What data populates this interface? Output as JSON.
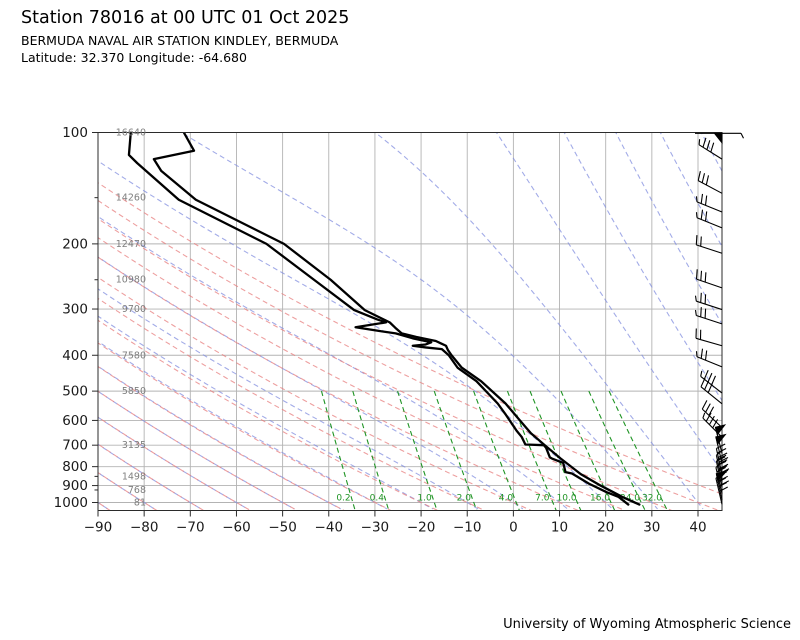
{
  "header": {
    "title": "Station 78016 at 00 UTC 01 Oct 2025",
    "subtitle": "BERMUDA NAVAL AIR STATION KINDLEY, BERMUDA",
    "location": "Latitude: 32.370 Longitude: -64.680"
  },
  "footer": {
    "credit": "University of Wyoming Atmospheric Science"
  },
  "axes": {
    "pressure_unit": "hPa",
    "temperature_unit": "C",
    "pressure_ticks": [
      100,
      200,
      300,
      400,
      500,
      600,
      700,
      800,
      900,
      1000
    ],
    "pressure_minor_ticks": [
      150,
      250,
      850,
      925
    ],
    "temperature_ticks": [
      -90,
      -80,
      -70,
      -60,
      -50,
      -40,
      -30,
      -20,
      -10,
      0,
      10,
      20,
      30,
      40
    ],
    "pressure_range": [
      100,
      1050
    ],
    "temperature_range": [
      -90,
      45
    ],
    "grid": true,
    "height_labels_m": [
      {
        "p": 100,
        "text": "16640"
      },
      {
        "p": 150,
        "text": "14260"
      },
      {
        "p": 200,
        "text": "12470"
      },
      {
        "p": 250,
        "text": "10980"
      },
      {
        "p": 300,
        "text": "9700"
      },
      {
        "p": 400,
        "text": "7580"
      },
      {
        "p": 500,
        "text": "5850"
      },
      {
        "p": 700,
        "text": "3135"
      },
      {
        "p": 850,
        "text": "1498"
      },
      {
        "p": 925,
        "text": "768"
      },
      {
        "p": 1000,
        "text": "81"
      }
    ]
  },
  "background_lines": {
    "dry_adiabats_theta_c": [
      -90,
      -80,
      -70,
      -60,
      -50,
      -40,
      -30,
      -20,
      -10,
      0,
      10,
      20,
      30,
      40,
      50
    ],
    "moist_adiabats_t0_c": [
      -90,
      -80,
      -70,
      -60,
      -50,
      -40,
      -30,
      -20,
      -10,
      0,
      10,
      20,
      30,
      40,
      50,
      60,
      70,
      80,
      90,
      100,
      110,
      120,
      130,
      140,
      150
    ],
    "mixing_ratio_g_kg": [
      0.2,
      0.4,
      1,
      2,
      4,
      7,
      10,
      16,
      24,
      32
    ],
    "mixing_ratio_labels": [
      "0.2",
      "0.4",
      "1.0",
      "2.0",
      "4.0",
      "7.0",
      "10.0",
      "16.0",
      "24.0",
      "32.0"
    ],
    "mixing_ratio_top_p": 500
  },
  "colors": {
    "grid": "#b3b3b3",
    "frame": "#2b2b2b",
    "dry_adiabat": "#e87f7f",
    "moist_adiabat": "#8490e0",
    "mixing_ratio": "#1f9424",
    "trace": "#000000",
    "height_label": "#7f7f7f",
    "tick_label": "#1a1a1a",
    "wind_barb": "#000000"
  },
  "chart_data": {
    "type": "line",
    "subtype": "atmospheric-sounding-emagram",
    "x_unit": "deg C",
    "y_unit": "hPa (log scale)",
    "series": [
      {
        "name": "temperature",
        "points_p_t": [
          [
            100,
            -71.4
          ],
          [
            112,
            -69.2
          ],
          [
            118,
            -77.9
          ],
          [
            127,
            -76.3
          ],
          [
            152,
            -68.8
          ],
          [
            200,
            -49.7
          ],
          [
            250,
            -39.6
          ],
          [
            302,
            -32.2
          ],
          [
            326,
            -26.8
          ],
          [
            337,
            -25.6
          ],
          [
            349,
            -24.2
          ],
          [
            357,
            -21.0
          ],
          [
            366,
            -16.8
          ],
          [
            371,
            -15.8
          ],
          [
            377,
            -14.6
          ],
          [
            387,
            -14.2
          ],
          [
            400,
            -13.4
          ],
          [
            432,
            -11.2
          ],
          [
            470,
            -7.0
          ],
          [
            540,
            -1.7
          ],
          [
            600,
            1.4
          ],
          [
            650,
            3.8
          ],
          [
            700,
            6.8
          ],
          [
            760,
            10.2
          ],
          [
            838,
            14.6
          ],
          [
            900,
            18.9
          ],
          [
            940,
            21.8
          ],
          [
            966,
            23.6
          ],
          [
            1013,
            27.3
          ]
        ]
      },
      {
        "name": "dewpoint",
        "points_p_t": [
          [
            100,
            -82.9
          ],
          [
            115,
            -83.3
          ],
          [
            121,
            -81.5
          ],
          [
            152,
            -72.5
          ],
          [
            200,
            -53.5
          ],
          [
            250,
            -43.2
          ],
          [
            302,
            -34.5
          ],
          [
            320,
            -29.5
          ],
          [
            326,
            -27.6
          ],
          [
            331,
            -31.0
          ],
          [
            336,
            -34.2
          ],
          [
            344,
            -29.0
          ],
          [
            349,
            -25.5
          ],
          [
            360,
            -21.8
          ],
          [
            369,
            -17.8
          ],
          [
            374,
            -19.0
          ],
          [
            377,
            -21.8
          ],
          [
            381,
            -19.0
          ],
          [
            385,
            -15.5
          ],
          [
            400,
            -14.0
          ],
          [
            432,
            -12.1
          ],
          [
            470,
            -8.0
          ],
          [
            540,
            -3.4
          ],
          [
            580,
            -1.6
          ],
          [
            640,
            0.7
          ],
          [
            665,
            1.8
          ],
          [
            697,
            2.6
          ],
          [
            700,
            6.6
          ],
          [
            712,
            7.1
          ],
          [
            755,
            7.9
          ],
          [
            760,
            8.3
          ],
          [
            782,
            10.8
          ],
          [
            828,
            11.3
          ],
          [
            835,
            12.7
          ],
          [
            890,
            16.4
          ],
          [
            938,
            20.2
          ],
          [
            966,
            22.8
          ],
          [
            1013,
            24.9
          ]
        ]
      }
    ],
    "wind_barbs": [
      {
        "p": 100.5,
        "angle_deg": 0,
        "pennants": 1,
        "full": 0,
        "half": 1,
        "top_style": true
      },
      {
        "p": 118,
        "angle_deg": 148,
        "pennants": 0,
        "full": 3,
        "half": 1
      },
      {
        "p": 146,
        "angle_deg": 152,
        "pennants": 0,
        "full": 3,
        "half": 0
      },
      {
        "p": 164,
        "angle_deg": 158,
        "pennants": 0,
        "full": 2,
        "half": 1
      },
      {
        "p": 181,
        "angle_deg": 158,
        "pennants": 0,
        "full": 2,
        "half": 1
      },
      {
        "p": 212,
        "angle_deg": 162,
        "pennants": 0,
        "full": 2,
        "half": 0
      },
      {
        "p": 263,
        "angle_deg": 161,
        "pennants": 0,
        "full": 3,
        "half": 0
      },
      {
        "p": 301,
        "angle_deg": 162,
        "pennants": 0,
        "full": 2,
        "half": 1
      },
      {
        "p": 329,
        "angle_deg": 162,
        "pennants": 0,
        "full": 2,
        "half": 1
      },
      {
        "p": 377,
        "angle_deg": 164,
        "pennants": 0,
        "full": 2,
        "half": 0
      },
      {
        "p": 430,
        "angle_deg": 158,
        "pennants": 0,
        "full": 2,
        "half": 1
      },
      {
        "p": 506,
        "angle_deg": 142,
        "pennants": 0,
        "full": 3,
        "half": 1
      },
      {
        "p": 541,
        "angle_deg": 141,
        "pennants": 0,
        "full": 3,
        "half": 0
      },
      {
        "p": 627,
        "angle_deg": 137,
        "pennants": 0,
        "full": 3,
        "half": 0
      },
      {
        "p": 666,
        "angle_deg": 135,
        "pennants": 0,
        "full": 3,
        "half": 1
      },
      {
        "p": 737,
        "angle_deg": 104,
        "pennants": 1,
        "full": 0,
        "half": 0
      },
      {
        "p": 783,
        "angle_deg": 103,
        "pennants": 1,
        "full": 0,
        "half": 0
      },
      {
        "p": 842,
        "angle_deg": 102,
        "pennants": 0,
        "full": 4,
        "half": 0
      },
      {
        "p": 878,
        "angle_deg": 102,
        "pennants": 0,
        "full": 4,
        "half": 1
      },
      {
        "p": 911,
        "angle_deg": 102,
        "pennants": 0,
        "full": 4,
        "half": 0
      },
      {
        "p": 947,
        "angle_deg": 103,
        "pennants": 0,
        "full": 4,
        "half": 1
      },
      {
        "p": 985,
        "angle_deg": 102,
        "pennants": 1,
        "full": 0,
        "half": 0
      },
      {
        "p": 1012,
        "angle_deg": 103,
        "pennants": 0,
        "full": 4,
        "half": 0
      }
    ],
    "barb_speed_key": {
      "pennant_kt": 50,
      "full_kt": 10,
      "half_kt": 5
    }
  }
}
